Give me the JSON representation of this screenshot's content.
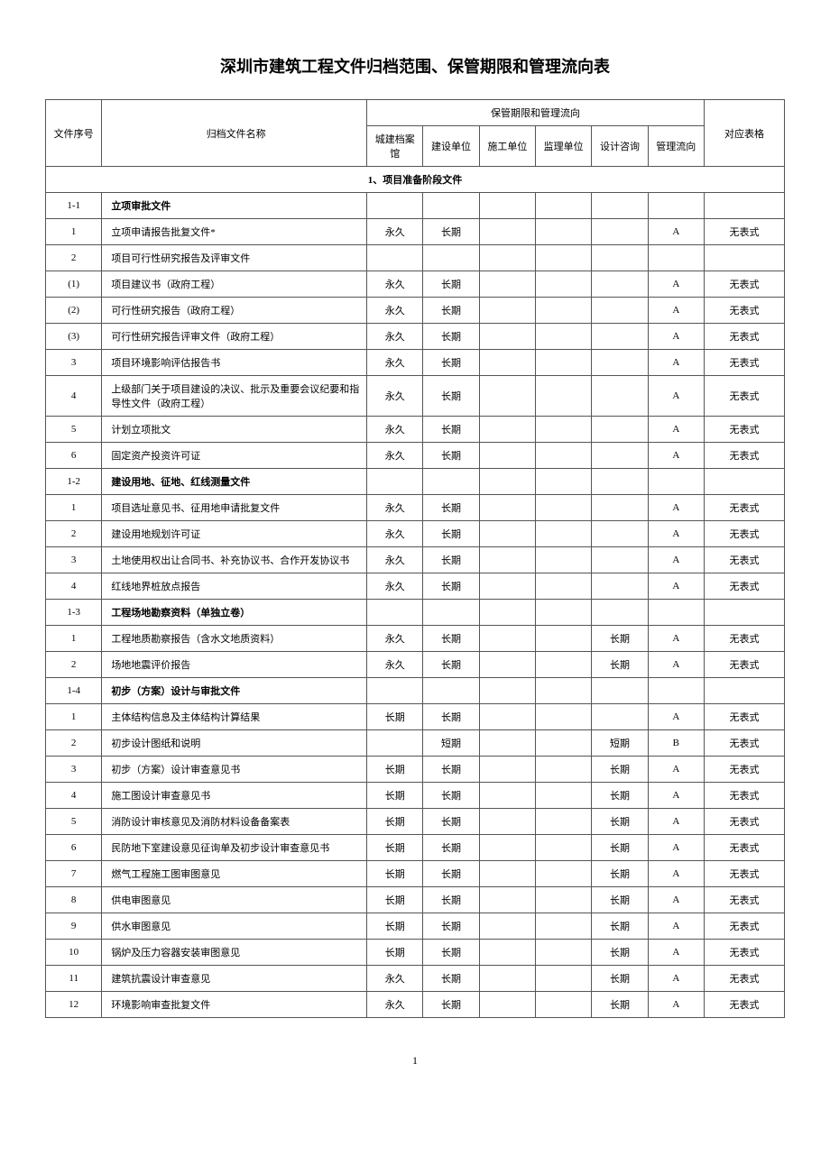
{
  "title": "深圳市建筑工程文件归档范围、保管期限和管理流向表",
  "header": {
    "seq": "文件序号",
    "name": "归档文件名称",
    "group": "保管期限和管理流向",
    "c1": "城建档案馆",
    "c2": "建设单位",
    "c3": "施工单位",
    "c4": "监理单位",
    "c5": "设计咨询",
    "c6": "管理流向",
    "form": "对应表格"
  },
  "section1": "1、项目准备阶段文件",
  "rows": [
    {
      "seq": "1-1",
      "name": "立项审批文件",
      "bold": true
    },
    {
      "seq": "1",
      "name": "立项申请报告批复文件*",
      "c1": "永久",
      "c2": "长期",
      "c6": "A",
      "form": "无表式"
    },
    {
      "seq": "2",
      "name": "项目可行性研究报告及评审文件"
    },
    {
      "seq": "(1)",
      "name": "项目建议书（政府工程）",
      "c1": "永久",
      "c2": "长期",
      "c6": "A",
      "form": "无表式"
    },
    {
      "seq": "(2)",
      "name": "可行性研究报告（政府工程）",
      "c1": "永久",
      "c2": "长期",
      "c6": "A",
      "form": "无表式"
    },
    {
      "seq": "(3)",
      "name": "可行性研究报告评审文件（政府工程）",
      "c1": "永久",
      "c2": "长期",
      "c6": "A",
      "form": "无表式"
    },
    {
      "seq": "3",
      "name": "项目环境影响评估报告书",
      "c1": "永久",
      "c2": "长期",
      "c6": "A",
      "form": "无表式"
    },
    {
      "seq": "4",
      "name": "上级部门关于项目建设的决议、批示及重要会议纪要和指导性文件（政府工程）",
      "c1": "永久",
      "c2": "长期",
      "c6": "A",
      "form": "无表式"
    },
    {
      "seq": "5",
      "name": "计划立项批文",
      "c1": "永久",
      "c2": "长期",
      "c6": "A",
      "form": "无表式"
    },
    {
      "seq": "6",
      "name": "固定资产投资许可证",
      "c1": "永久",
      "c2": "长期",
      "c6": "A",
      "form": "无表式"
    },
    {
      "seq": "1-2",
      "name": "建设用地、征地、红线测量文件",
      "bold": true
    },
    {
      "seq": "1",
      "name": "项目选址意见书、征用地申请批复文件",
      "c1": "永久",
      "c2": "长期",
      "c6": "A",
      "form": "无表式"
    },
    {
      "seq": "2",
      "name": "建设用地规划许可证",
      "c1": "永久",
      "c2": "长期",
      "c6": "A",
      "form": "无表式"
    },
    {
      "seq": "3",
      "name": "土地使用权出让合同书、补充协议书、合作开发协议书",
      "c1": "永久",
      "c2": "长期",
      "c6": "A",
      "form": "无表式"
    },
    {
      "seq": "4",
      "name": "红线地界桩放点报告",
      "c1": "永久",
      "c2": "长期",
      "c6": "A",
      "form": "无表式"
    },
    {
      "seq": "1-3",
      "name": "工程场地勘察资料（单独立卷）",
      "bold": true
    },
    {
      "seq": "1",
      "name": "工程地质勘察报告（含水文地质资料）",
      "c1": "永久",
      "c2": "长期",
      "c5": "长期",
      "c6": "A",
      "form": "无表式"
    },
    {
      "seq": "2",
      "name": "场地地震评价报告",
      "c1": "永久",
      "c2": "长期",
      "c5": "长期",
      "c6": "A",
      "form": "无表式"
    },
    {
      "seq": "1-4",
      "name": "初步（方案）设计与审批文件",
      "bold": true
    },
    {
      "seq": "1",
      "name": "主体结构信息及主体结构计算结果",
      "c1": "长期",
      "c2": "长期",
      "c6": "A",
      "form": "无表式"
    },
    {
      "seq": "2",
      "name": "初步设计图纸和说明",
      "c2": "短期",
      "c5": "短期",
      "c6": "B",
      "form": "无表式"
    },
    {
      "seq": "3",
      "name": "初步（方案）设计审查意见书",
      "c1": "长期",
      "c2": "长期",
      "c5": "长期",
      "c6": "A",
      "form": "无表式"
    },
    {
      "seq": "4",
      "name": "施工图设计审查意见书",
      "c1": "长期",
      "c2": "长期",
      "c5": "长期",
      "c6": "A",
      "form": "无表式"
    },
    {
      "seq": "5",
      "name": "消防设计审核意见及消防材料设备备案表",
      "c1": "长期",
      "c2": "长期",
      "c5": "长期",
      "c6": "A",
      "form": "无表式"
    },
    {
      "seq": "6",
      "name": "民防地下室建设意见征询单及初步设计审查意见书",
      "c1": "长期",
      "c2": "长期",
      "c5": "长期",
      "c6": "A",
      "form": "无表式"
    },
    {
      "seq": "7",
      "name": "燃气工程施工图审图意见",
      "c1": "长期",
      "c2": "长期",
      "c5": "长期",
      "c6": "A",
      "form": "无表式"
    },
    {
      "seq": "8",
      "name": "供电审图意见",
      "c1": "长期",
      "c2": "长期",
      "c5": "长期",
      "c6": "A",
      "form": "无表式"
    },
    {
      "seq": "9",
      "name": "供水审图意见",
      "c1": "长期",
      "c2": "长期",
      "c5": "长期",
      "c6": "A",
      "form": "无表式"
    },
    {
      "seq": "10",
      "name": "锅炉及压力容器安装审图意见",
      "c1": "长期",
      "c2": "长期",
      "c5": "长期",
      "c6": "A",
      "form": "无表式"
    },
    {
      "seq": "11",
      "name": "建筑抗震设计审查意见",
      "c1": "永久",
      "c2": "长期",
      "c5": "长期",
      "c6": "A",
      "form": "无表式"
    },
    {
      "seq": "12",
      "name": "环境影响审查批复文件",
      "c1": "永久",
      "c2": "长期",
      "c5": "长期",
      "c6": "A",
      "form": "无表式"
    }
  ],
  "pageNumber": "1"
}
